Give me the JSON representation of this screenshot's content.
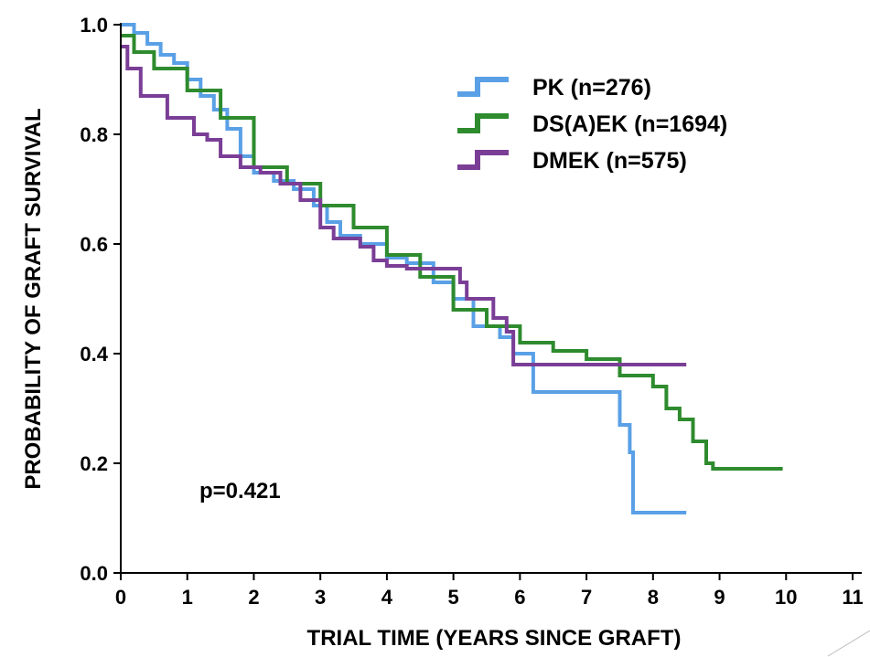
{
  "chart_data": {
    "type": "line",
    "subtype": "kaplan-meier step curves",
    "xlabel": "TRIAL TIME (YEARS SINCE GRAFT)",
    "ylabel": "PROBABILITY OF GRAFT SURVIVAL",
    "xlim": [
      0,
      11
    ],
    "ylim": [
      0,
      1.0
    ],
    "x_ticks": [
      "0",
      "1",
      "2",
      "3",
      "4",
      "5",
      "6",
      "7",
      "8",
      "9",
      "10",
      "11"
    ],
    "y_ticks": [
      "0.0",
      "0.2",
      "0.4",
      "0.6",
      "0.8",
      "1.0"
    ],
    "grid": false,
    "legend_position": "top-right",
    "annotation": "p=0.421",
    "series": [
      {
        "name": "PK (n=276)",
        "color": "#5aa0e6",
        "points": [
          [
            0,
            1.0
          ],
          [
            0.2,
            0.985
          ],
          [
            0.4,
            0.965
          ],
          [
            0.6,
            0.945
          ],
          [
            0.8,
            0.93
          ],
          [
            1.0,
            0.9
          ],
          [
            1.2,
            0.87
          ],
          [
            1.4,
            0.845
          ],
          [
            1.6,
            0.81
          ],
          [
            1.8,
            0.76
          ],
          [
            2.0,
            0.73
          ],
          [
            2.3,
            0.715
          ],
          [
            2.6,
            0.7
          ],
          [
            2.9,
            0.67
          ],
          [
            3.1,
            0.64
          ],
          [
            3.3,
            0.615
          ],
          [
            3.6,
            0.6
          ],
          [
            4.0,
            0.575
          ],
          [
            4.3,
            0.565
          ],
          [
            4.5,
            0.565
          ],
          [
            4.7,
            0.53
          ],
          [
            5.0,
            0.5
          ],
          [
            5.3,
            0.45
          ],
          [
            5.7,
            0.43
          ],
          [
            5.9,
            0.4
          ],
          [
            6.0,
            0.4
          ],
          [
            6.2,
            0.33
          ],
          [
            7.4,
            0.33
          ],
          [
            7.5,
            0.27
          ],
          [
            7.65,
            0.22
          ],
          [
            7.7,
            0.11
          ],
          [
            8.5,
            0.11
          ]
        ]
      },
      {
        "name": "DS(A)EK (n=1694)",
        "color": "#2e8b2e",
        "points": [
          [
            0,
            0.98
          ],
          [
            0.2,
            0.95
          ],
          [
            0.5,
            0.92
          ],
          [
            1.0,
            0.88
          ],
          [
            1.5,
            0.83
          ],
          [
            2.0,
            0.74
          ],
          [
            2.5,
            0.71
          ],
          [
            3.0,
            0.67
          ],
          [
            3.5,
            0.63
          ],
          [
            4.0,
            0.58
          ],
          [
            4.5,
            0.54
          ],
          [
            5.0,
            0.48
          ],
          [
            5.5,
            0.45
          ],
          [
            6.0,
            0.42
          ],
          [
            6.5,
            0.405
          ],
          [
            7.0,
            0.39
          ],
          [
            7.5,
            0.36
          ],
          [
            8.0,
            0.34
          ],
          [
            8.2,
            0.3
          ],
          [
            8.4,
            0.28
          ],
          [
            8.6,
            0.24
          ],
          [
            8.8,
            0.2
          ],
          [
            8.9,
            0.19
          ],
          [
            9.95,
            0.19
          ]
        ]
      },
      {
        "name": "DMEK (n=575)",
        "color": "#7a3e96",
        "points": [
          [
            0,
            0.96
          ],
          [
            0.1,
            0.92
          ],
          [
            0.3,
            0.87
          ],
          [
            0.7,
            0.83
          ],
          [
            1.1,
            0.8
          ],
          [
            1.3,
            0.79
          ],
          [
            1.5,
            0.76
          ],
          [
            1.8,
            0.74
          ],
          [
            2.1,
            0.73
          ],
          [
            2.4,
            0.71
          ],
          [
            2.7,
            0.68
          ],
          [
            3.0,
            0.63
          ],
          [
            3.2,
            0.61
          ],
          [
            3.6,
            0.595
          ],
          [
            3.8,
            0.57
          ],
          [
            4.0,
            0.56
          ],
          [
            4.3,
            0.555
          ],
          [
            4.6,
            0.555
          ],
          [
            5.0,
            0.555
          ],
          [
            5.1,
            0.53
          ],
          [
            5.2,
            0.5
          ],
          [
            5.6,
            0.465
          ],
          [
            5.8,
            0.44
          ],
          [
            5.9,
            0.38
          ],
          [
            6.5,
            0.38
          ],
          [
            8.5,
            0.38
          ]
        ]
      }
    ]
  }
}
